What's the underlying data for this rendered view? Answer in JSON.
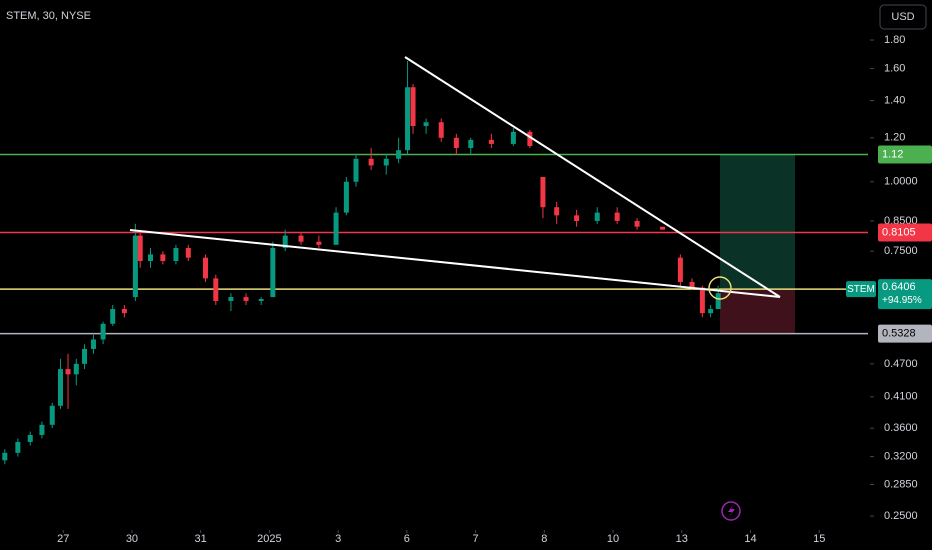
{
  "header": {
    "symbol": "STEM, 30, NYSE",
    "currency": "USD"
  },
  "chart_data": {
    "type": "candlestick",
    "x": [
      -0.85,
      -0.66,
      -0.48,
      -0.31,
      -0.16,
      -0.04,
      0.07,
      0.19,
      0.31,
      0.44,
      0.58,
      0.72,
      0.89,
      1.05,
      1.12,
      1.27,
      1.45,
      1.64,
      1.82,
      2.07,
      2.22,
      2.44,
      2.66,
      2.88,
      3.05,
      3.23,
      3.46,
      3.72,
      3.97,
      4.12,
      4.26,
      4.48,
      4.7,
      4.88,
      5.01,
      5.09,
      5.28,
      5.5,
      5.72,
      5.93,
      6.23,
      6.55,
      6.79,
      6.98,
      7.18,
      7.47,
      7.77,
      8.06,
      8.35,
      8.72,
      8.98,
      9.15,
      9.3,
      9.42,
      9.53
    ],
    "open": [
      0.315,
      0.325,
      0.34,
      0.35,
      0.365,
      0.395,
      0.46,
      0.45,
      0.47,
      0.5,
      0.52,
      0.555,
      0.59,
      0.62,
      0.8,
      0.72,
      0.74,
      0.72,
      0.76,
      0.73,
      0.67,
      0.61,
      0.62,
      0.61,
      0.62,
      0.76,
      0.8,
      0.78,
      0.77,
      0.88,
      1.0,
      1.1,
      1.07,
      1.1,
      1.14,
      1.48,
      1.26,
      1.28,
      1.2,
      1.15,
      1.19,
      1.17,
      1.23,
      1.02,
      0.9,
      0.87,
      0.85,
      0.88,
      0.85,
      0.83,
      0.73,
      0.66,
      0.645,
      0.58,
      0.59
    ],
    "high": [
      0.33,
      0.345,
      0.355,
      0.37,
      0.4,
      0.48,
      0.49,
      0.48,
      0.51,
      0.53,
      0.56,
      0.6,
      0.6,
      0.84,
      0.81,
      0.76,
      0.75,
      0.77,
      0.77,
      0.74,
      0.68,
      0.63,
      0.63,
      0.62,
      0.78,
      0.82,
      0.81,
      0.8,
      0.9,
      1.02,
      1.12,
      1.15,
      1.12,
      1.2,
      1.65,
      1.5,
      1.3,
      1.3,
      1.22,
      1.2,
      1.22,
      1.25,
      1.24,
      1.02,
      0.92,
      0.89,
      0.9,
      0.9,
      0.86,
      0.83,
      0.74,
      0.67,
      0.65,
      0.6,
      0.65
    ],
    "low": [
      0.31,
      0.32,
      0.335,
      0.345,
      0.36,
      0.39,
      0.39,
      0.43,
      0.46,
      0.49,
      0.51,
      0.55,
      0.57,
      0.61,
      0.7,
      0.7,
      0.71,
      0.71,
      0.72,
      0.66,
      0.6,
      0.585,
      0.6,
      0.6,
      0.62,
      0.75,
      0.77,
      0.76,
      0.77,
      0.87,
      0.98,
      1.05,
      1.03,
      1.08,
      1.12,
      1.22,
      1.22,
      1.18,
      1.12,
      1.12,
      1.15,
      1.16,
      1.15,
      0.86,
      0.84,
      0.83,
      0.84,
      0.84,
      0.82,
      0.82,
      0.65,
      0.64,
      0.57,
      0.57,
      0.59
    ],
    "close": [
      0.325,
      0.34,
      0.35,
      0.365,
      0.395,
      0.46,
      0.45,
      0.47,
      0.5,
      0.52,
      0.555,
      0.59,
      0.58,
      0.8,
      0.72,
      0.74,
      0.72,
      0.76,
      0.73,
      0.67,
      0.61,
      0.62,
      0.61,
      0.615,
      0.76,
      0.8,
      0.78,
      0.77,
      0.88,
      1.0,
      1.1,
      1.07,
      1.1,
      1.14,
      1.48,
      1.26,
      1.28,
      1.2,
      1.15,
      1.19,
      1.17,
      1.23,
      1.16,
      0.9,
      0.87,
      0.85,
      0.88,
      0.85,
      0.83,
      0.82,
      0.66,
      0.645,
      0.58,
      0.59,
      0.63
    ],
    "up_color": "#089981",
    "down_color": "#f23645",
    "log_scale": true,
    "xlim": [
      -0.92,
      11.71
    ],
    "xticks": [
      {
        "value": 0,
        "label": "27"
      },
      {
        "value": 1,
        "label": "30"
      },
      {
        "value": 2,
        "label": "31"
      },
      {
        "value": 3,
        "label": "2025"
      },
      {
        "value": 4,
        "label": "3"
      },
      {
        "value": 5,
        "label": "6"
      },
      {
        "value": 6,
        "label": "7"
      },
      {
        "value": 7,
        "label": "8"
      },
      {
        "value": 8,
        "label": "10"
      },
      {
        "value": 9,
        "label": "13"
      },
      {
        "value": 10,
        "label": "14"
      },
      {
        "value": 11,
        "label": "15"
      }
    ],
    "ylim": [
      0.236,
      2.125
    ],
    "yticks": [
      {
        "value": 1.8,
        "label": "1.80"
      },
      {
        "value": 1.6,
        "label": "1.60"
      },
      {
        "value": 1.4,
        "label": "1.40"
      },
      {
        "value": 1.2,
        "label": "1.20"
      },
      {
        "value": 1,
        "label": "1.0000"
      },
      {
        "value": 0.85,
        "label": "0.8500"
      },
      {
        "value": 0.75,
        "label": "0.7500"
      },
      {
        "value": 0.47,
        "label": "0.4700"
      },
      {
        "value": 0.41,
        "label": "0.4100"
      },
      {
        "value": 0.36,
        "label": "0.3600"
      },
      {
        "value": 0.32,
        "label": "0.3200"
      },
      {
        "value": 0.285,
        "label": "0.2850"
      },
      {
        "value": 0.25,
        "label": "0.2500"
      }
    ],
    "levels": [
      {
        "value": 1.12,
        "color": "#4caf50"
      },
      {
        "value": 0.8105,
        "color": "#f23645"
      },
      {
        "value": 0.6406,
        "color": "#e8e07a"
      },
      {
        "value": 0.5328,
        "color": "#b2b5be"
      }
    ],
    "last_price": {
      "symbol": "STEM",
      "change": "+94.95%"
    }
  }
}
